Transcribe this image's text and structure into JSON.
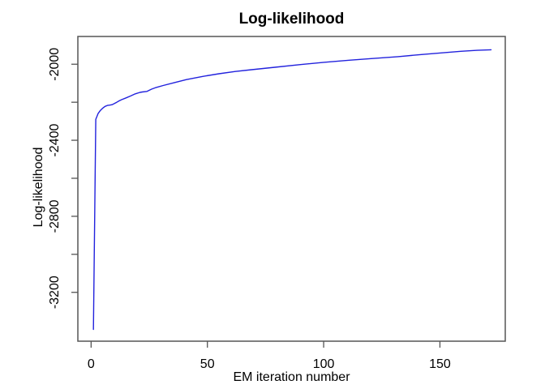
{
  "chart_data": {
    "type": "line",
    "title": "Log-likelihood",
    "xlabel": "EM iteration number",
    "ylabel": "Log-likelihood",
    "grid": false,
    "legend": null,
    "line_color": "#2222dd",
    "axis_color": "#555555",
    "text_color": "#000000",
    "background_color": "#ffffff",
    "xlim": [
      -5.7,
      178.1
    ],
    "ylim": [
      -3457,
      -1854
    ],
    "x_ticks": [
      0,
      50,
      100,
      150
    ],
    "x_tick_labels": [
      "0",
      "50",
      "100",
      "150"
    ],
    "y_ticks": [
      -2000,
      -2200,
      -2400,
      -2600,
      -2800,
      -3000,
      -3200
    ],
    "y_tick_labels": [
      "-2000",
      "",
      "-2400",
      "",
      "-2800",
      "",
      "-3200"
    ],
    "series": [
      {
        "name": "log-likelihood",
        "points": [
          [
            1,
            -3395
          ],
          [
            2,
            -2290
          ],
          [
            3,
            -2260
          ],
          [
            4,
            -2243
          ],
          [
            5,
            -2231
          ],
          [
            6,
            -2222
          ],
          [
            7,
            -2217
          ],
          [
            8,
            -2215
          ],
          [
            9,
            -2213
          ],
          [
            10,
            -2207
          ],
          [
            11,
            -2200
          ],
          [
            12,
            -2193
          ],
          [
            13,
            -2187
          ],
          [
            15,
            -2177
          ],
          [
            17,
            -2167
          ],
          [
            19,
            -2156
          ],
          [
            21,
            -2148
          ],
          [
            22,
            -2146
          ],
          [
            24,
            -2143
          ],
          [
            26,
            -2131
          ],
          [
            28,
            -2122
          ],
          [
            31,
            -2112
          ],
          [
            36,
            -2096
          ],
          [
            41,
            -2081
          ],
          [
            48,
            -2064
          ],
          [
            55,
            -2050
          ],
          [
            62,
            -2038
          ],
          [
            69,
            -2029
          ],
          [
            79,
            -2016
          ],
          [
            90,
            -2002
          ],
          [
            100,
            -1990
          ],
          [
            111,
            -1979
          ],
          [
            121,
            -1970
          ],
          [
            132,
            -1960
          ],
          [
            142,
            -1949
          ],
          [
            151,
            -1940
          ],
          [
            159,
            -1932
          ],
          [
            166,
            -1927
          ],
          [
            172,
            -1924
          ]
        ]
      }
    ]
  }
}
